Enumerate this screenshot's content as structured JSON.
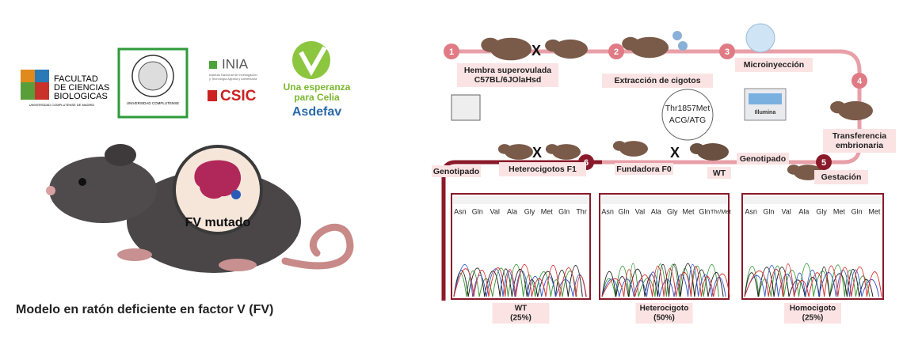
{
  "left": {
    "logos": {
      "faculty": [
        "FACULTAD",
        "DE CIENCIAS",
        "BIOLOGICAS"
      ],
      "faculty_footer": "UNIVERSIDAD COMPLUTENSE DE MADRID",
      "ucm": "UNIVERSIDAD COMPLUTENSE",
      "inia": "INIA",
      "inia_subtitle": [
        "Instituto Nacional de Investigación",
        "y Tecnología Agraria y Alimentaria"
      ],
      "csic": "CSIC",
      "celia": [
        "Una esperanza",
        "para Celia"
      ],
      "asdefav": "Asdefav"
    },
    "badge": "FV mutado",
    "caption": "Modelo en ratón deficiente en factor V (FV)"
  },
  "workflow": {
    "steps": [
      {
        "number": 1,
        "lines": [
          "Hembra superovulada",
          "C57BL/6JOlaHsd"
        ]
      },
      {
        "number": 2,
        "lines": [
          "Extracción de cigotos"
        ]
      },
      {
        "number": 3,
        "lines": [
          "Microinyección"
        ]
      },
      {
        "number": 4,
        "lines": [
          "Transferencia",
          "embrionaria"
        ]
      },
      {
        "number": 5,
        "lines": [
          "Gestación"
        ]
      },
      {
        "number": 6,
        "lines": [
          "Heterocigotos F1"
        ]
      }
    ],
    "labels": {
      "genotyping_top": "Genotipado",
      "wt": "WT",
      "founder": "Fundadora F0",
      "genotyping_bottom": "Genotipado",
      "mutation": "Thr1857Met",
      "codon": "ACG/ATG",
      "sequencer": "Illumina"
    },
    "cross_symbol": "X"
  },
  "chromatograms": [
    {
      "residues": [
        "Asn",
        "Gln",
        "Val",
        "Ala",
        "Gly",
        "Met",
        "Gln",
        "Thr"
      ],
      "label": [
        "WT",
        "(25%)"
      ]
    },
    {
      "residues": [
        "Asn",
        "Gln",
        "Val",
        "Ala",
        "Gly",
        "Met",
        "Gln",
        "Thr/Met"
      ],
      "label": [
        "Heterocigoto",
        "(50%)"
      ]
    },
    {
      "residues": [
        "Asn",
        "Gln",
        "Val",
        "Ala",
        "Gly",
        "Met",
        "Gln",
        "Met"
      ],
      "label": [
        "Homocigoto",
        "(25%)"
      ]
    }
  ]
}
